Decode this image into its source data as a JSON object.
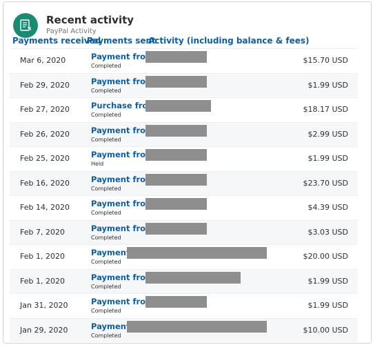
{
  "header": {
    "title": "Recent activity",
    "subtitle": "PayPal Activity",
    "logo_icon": "document-list-icon"
  },
  "tabs": [
    {
      "label": "Payments received"
    },
    {
      "label": "Payments sent"
    },
    {
      "label": "Activity (including balance & fees)"
    }
  ],
  "colors": {
    "brand_green": "#1a8b73",
    "link_blue": "#0b5fa5",
    "redaction_gray": "#8e8e8e"
  },
  "activity": [
    {
      "date": "Mar 6, 2020",
      "description": "Payment from",
      "status": "Completed",
      "amount": "$15.70 USD"
    },
    {
      "date": "Feb 29, 2020",
      "description": "Payment from",
      "status": "Completed",
      "amount": "$1.99 USD"
    },
    {
      "date": "Feb 27, 2020",
      "description": "Purchase from",
      "status": "Completed",
      "amount": "$18.17 USD"
    },
    {
      "date": "Feb 26, 2020",
      "description": "Payment from",
      "status": "Completed",
      "amount": "$2.99 USD"
    },
    {
      "date": "Feb 25, 2020",
      "description": "Payment from",
      "status": "Held",
      "amount": "$1.99 USD"
    },
    {
      "date": "Feb 16, 2020",
      "description": "Payment from",
      "status": "Completed",
      "amount": "$23.70 USD"
    },
    {
      "date": "Feb 14, 2020",
      "description": "Payment from",
      "status": "Completed",
      "amount": "$4.39 USD"
    },
    {
      "date": "Feb 7, 2020",
      "description": "Payment from",
      "status": "Completed",
      "amount": "$3.03 USD"
    },
    {
      "date": "Feb 1, 2020",
      "description": "Payment",
      "status": "Completed",
      "amount": "$20.00 USD"
    },
    {
      "date": "Feb 1, 2020",
      "description": "Payment from",
      "status": "Completed",
      "amount": "$1.99 USD"
    },
    {
      "date": "Jan 31, 2020",
      "description": "Payment from",
      "status": "Completed",
      "amount": "$1.99 USD"
    },
    {
      "date": "Jan 29, 2020",
      "description": "Payment",
      "status": "Completed",
      "amount": "$10.00 USD"
    }
  ]
}
